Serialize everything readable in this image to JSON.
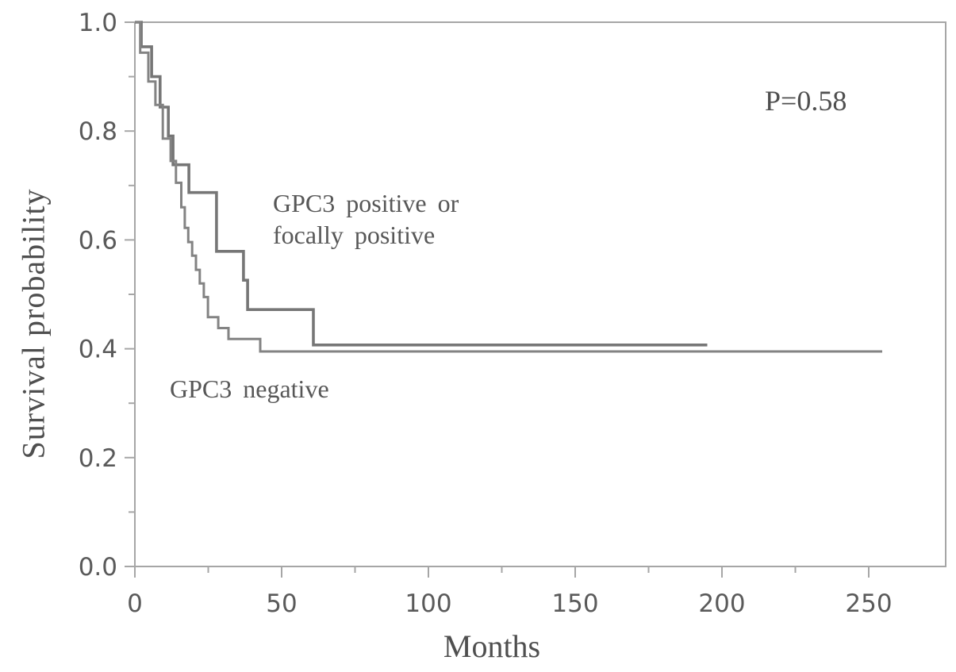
{
  "chart_data": {
    "type": "line",
    "subtype": "kaplan-meier-survival-steps",
    "title": "",
    "xlabel": "Months",
    "ylabel": "Survival probability",
    "annotation": "P=0.58",
    "xlim": [
      0,
      276
    ],
    "ylim": [
      0.0,
      1.0
    ],
    "grid": false,
    "frame": true,
    "legend_position": "inline-text-labels",
    "x_major_ticks": [
      0,
      50,
      100,
      150,
      200,
      250
    ],
    "x_major_tick_labels": [
      "0",
      "50",
      "100",
      "150",
      "200",
      "250"
    ],
    "x_minor_ticks": [
      25,
      75,
      125,
      175,
      225
    ],
    "y_major_ticks": [
      1.0,
      0.8,
      0.6,
      0.4,
      0.2,
      0.0
    ],
    "y_major_tick_labels": [
      "1.0",
      "0.8",
      "0.6",
      "0.4",
      "0.2",
      "0.0"
    ],
    "y_minor_ticks": [
      0.9,
      0.7,
      0.5,
      0.3,
      0.1
    ],
    "series": [
      {
        "name": "GPC3 positive or focally positive",
        "label_lines": [
          "GPC3 positive or",
          "focally positive"
        ],
        "color": "#767676",
        "line_width": 3.6,
        "points": [
          [
            0,
            1.0
          ],
          [
            2.2,
            0.955
          ],
          [
            5.7,
            0.9
          ],
          [
            8.6,
            0.844
          ],
          [
            11.4,
            0.791
          ],
          [
            13.0,
            0.738
          ],
          [
            18.4,
            0.687
          ],
          [
            27.8,
            0.579
          ],
          [
            37.0,
            0.526
          ],
          [
            38.4,
            0.472
          ],
          [
            60.8,
            0.407
          ]
        ],
        "end_month": 195
      },
      {
        "name": "GPC3 negative",
        "label": "GPC3 negative",
        "color": "#838383",
        "line_width": 3.0,
        "points": [
          [
            0,
            1.0
          ],
          [
            1.8,
            0.944
          ],
          [
            4.6,
            0.891
          ],
          [
            7.0,
            0.848
          ],
          [
            9.5,
            0.786
          ],
          [
            12.2,
            0.745
          ],
          [
            14.0,
            0.705
          ],
          [
            15.8,
            0.66
          ],
          [
            17.0,
            0.622
          ],
          [
            18.2,
            0.596
          ],
          [
            19.5,
            0.571
          ],
          [
            20.8,
            0.545
          ],
          [
            22.1,
            0.52
          ],
          [
            23.5,
            0.495
          ],
          [
            24.9,
            0.458
          ],
          [
            28.4,
            0.438
          ],
          [
            31.9,
            0.418
          ],
          [
            42.7,
            0.395
          ]
        ],
        "end_month": 254.6
      }
    ],
    "colors": {
      "axis": "#a6a6a6",
      "tick_label": "#5a5a5a",
      "text": "#4f4f4f"
    }
  }
}
